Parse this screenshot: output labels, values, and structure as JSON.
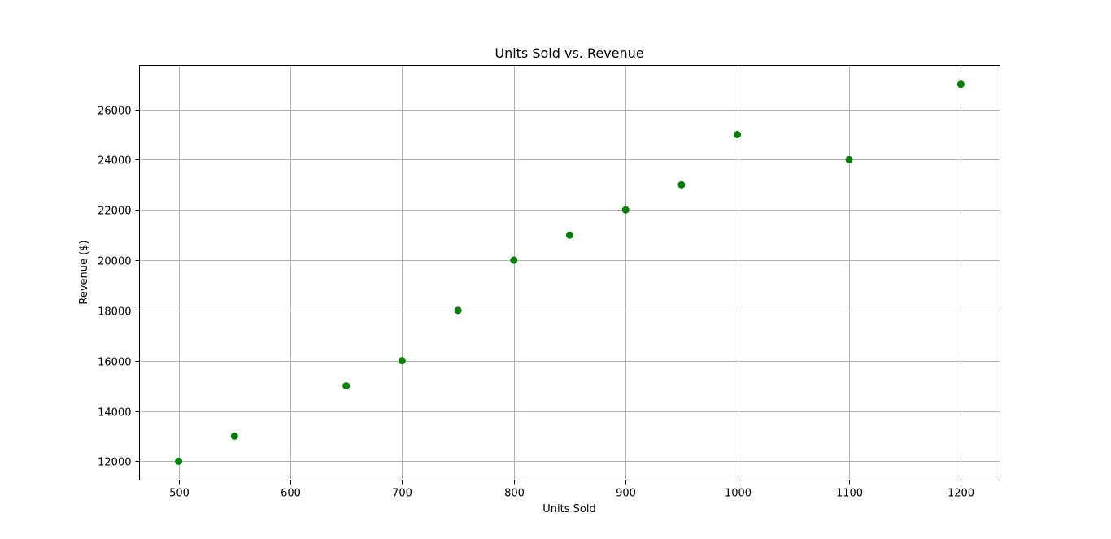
{
  "chart_data": {
    "type": "scatter",
    "title": "Units Sold vs. Revenue",
    "xlabel": "Units Sold",
    "ylabel": "Revenue ($)",
    "x": [
      500,
      550,
      650,
      700,
      750,
      800,
      850,
      900,
      950,
      1000,
      1100,
      1200
    ],
    "y": [
      12000,
      13000,
      15000,
      16000,
      18000,
      20000,
      21000,
      22000,
      23000,
      25000,
      24000,
      27000
    ],
    "xlim": [
      465,
      1235
    ],
    "ylim": [
      11250,
      27750
    ],
    "x_ticks": [
      "500",
      "600",
      "700",
      "800",
      "900",
      "1000",
      "1100",
      "1200"
    ],
    "y_ticks": [
      "12000",
      "14000",
      "16000",
      "18000",
      "20000",
      "22000",
      "24000",
      "26000"
    ],
    "grid": true,
    "marker_color": "#008000"
  }
}
